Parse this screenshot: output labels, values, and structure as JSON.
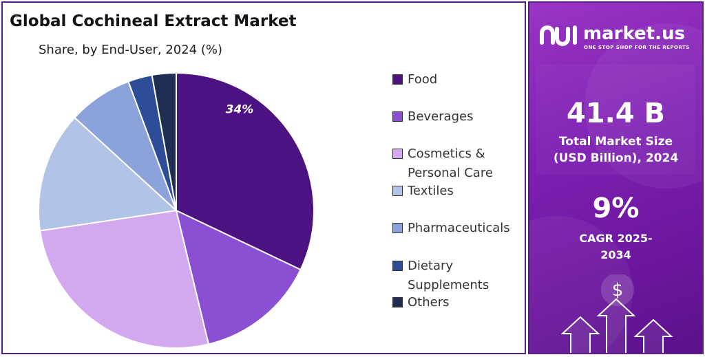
{
  "header": {
    "title": "Global Cochineal Extract Market",
    "subtitle": "Share, by End-User, 2024 (%)"
  },
  "chart_data": {
    "type": "pie",
    "categories": [
      "Food",
      "Beverages",
      "Cosmetics & Personal Care",
      "Textiles",
      "Pharmaceuticals",
      "Dietary Supplements",
      "Others"
    ],
    "values": [
      34,
      15,
      28,
      15,
      8,
      3,
      3
    ],
    "colors": [
      "#4c1282",
      "#8a4fd3",
      "#d2a8ee",
      "#b1c3e6",
      "#8ca2db",
      "#2e4d98",
      "#1f2e52"
    ],
    "data_labels": [
      "34%",
      "",
      "",
      "",
      "",
      "",
      ""
    ],
    "legend_position": "right"
  },
  "legend": {
    "items": [
      {
        "label": "Food",
        "color": "#4c1282"
      },
      {
        "label": "Beverages",
        "color": "#8a4fd3"
      },
      {
        "label": "Cosmetics & Personal Care",
        "color": "#d2a8ee"
      },
      {
        "label": "Textiles",
        "color": "#b1c3e6"
      },
      {
        "label": "Pharmaceuticals",
        "color": "#8ca2db"
      },
      {
        "label": "Dietary Supplements",
        "color": "#2e4d98"
      },
      {
        "label": "Others",
        "color": "#1f2e52"
      }
    ]
  },
  "sidebar": {
    "brand": "market.us",
    "tagline": "ONE STOP SHOP FOR THE REPORTS",
    "market_size_value": "41.4 B",
    "market_size_label": "Total Market Size (USD Billion), 2024",
    "cagr_value": "9%",
    "cagr_label": "CAGR 2025-2034",
    "dollar_symbol": "$",
    "accent_color": "#7e1fb3"
  }
}
